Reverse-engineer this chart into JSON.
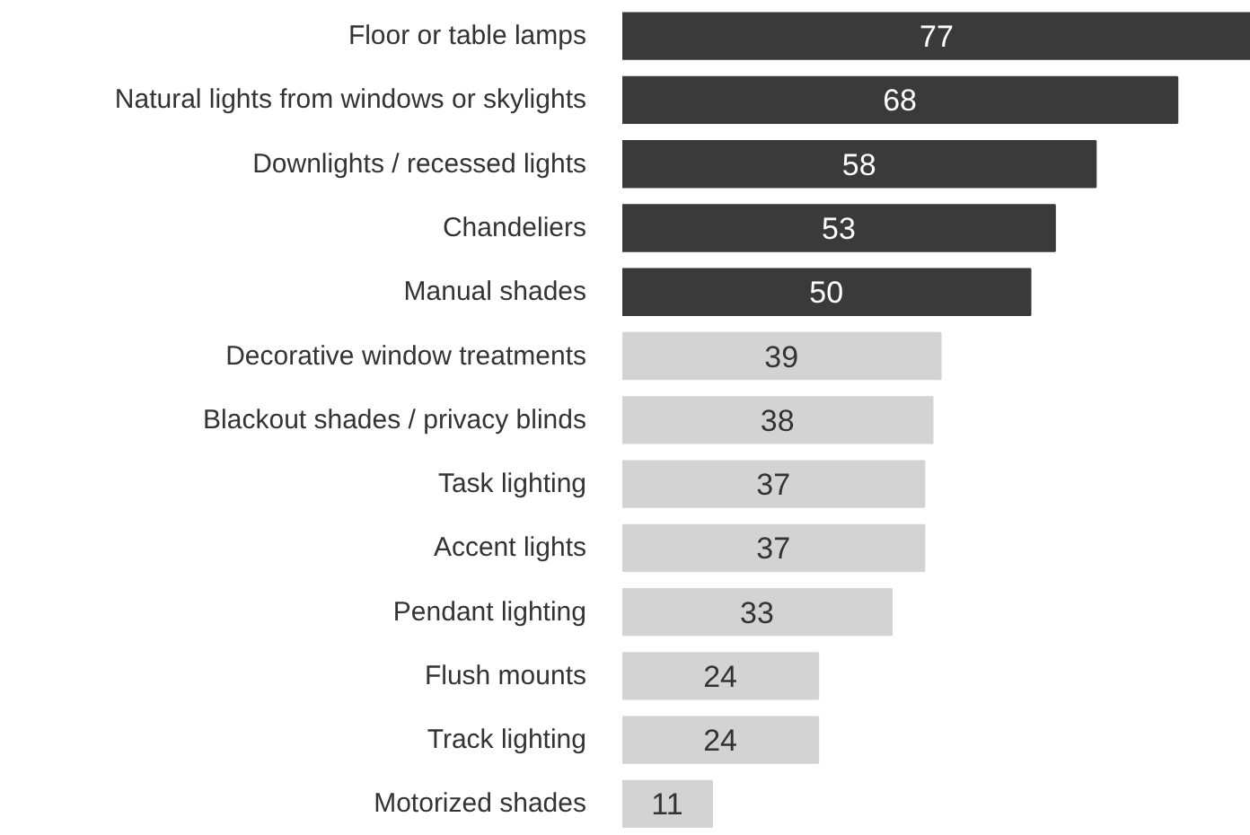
{
  "chart_data": {
    "type": "bar",
    "orientation": "horizontal",
    "data_labels": true,
    "grid": false,
    "categories": [
      "Floor or table lamps",
      "Natural lights from windows or skylights",
      "Downlights / recessed lights",
      "Chandeliers",
      "Manual shades",
      "Decorative window treatments",
      "Blackout shades / privacy blinds",
      "Task lighting",
      "Accent lights",
      "Pendant lighting",
      "Flush mounts",
      "Track lighting",
      "Motorized shades"
    ],
    "values": [
      77,
      68,
      58,
      53,
      50,
      39,
      38,
      37,
      37,
      33,
      24,
      24,
      11
    ],
    "colors": [
      "#3a3a3a",
      "#3a3a3a",
      "#3a3a3a",
      "#3a3a3a",
      "#3a3a3a",
      "#d3d3d3",
      "#d3d3d3",
      "#d3d3d3",
      "#d3d3d3",
      "#d3d3d3",
      "#d3d3d3",
      "#d3d3d3",
      "#d3d3d3"
    ]
  }
}
